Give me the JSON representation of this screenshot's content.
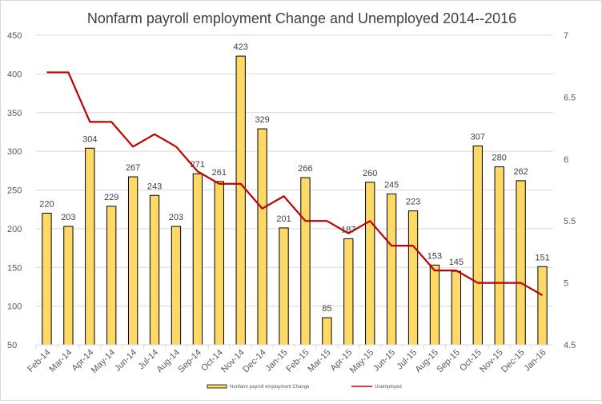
{
  "chart_data": {
    "type": "bar",
    "title": "Nonfarm payroll employment Change and Unemployed 2014--2016",
    "xlabel": "",
    "ylabel": "",
    "y2label": "",
    "categories": [
      "Feb-14",
      "Mar-14",
      "Apr-14",
      "May-14",
      "Jun-14",
      "Jul-14",
      "Aug-14",
      "Sep-14",
      "Oct-14",
      "Nov-14",
      "Dec-14",
      "Jan-15",
      "Feb-15",
      "Mar-15",
      "Apr-15",
      "May-15",
      "Jun-15",
      "Jul-15",
      "Aug-15",
      "Sep-15",
      "Oct-15",
      "Nov-15",
      "Dec-15",
      "Jan-16"
    ],
    "series": [
      {
        "name": "Nonfarm payroll employment Change",
        "type": "bar",
        "axis": "left",
        "color": "#FFD966",
        "edge_color": "#000000",
        "values": [
          220,
          203,
          304,
          229,
          267,
          243,
          203,
          271,
          261,
          423,
          329,
          201,
          266,
          85,
          187,
          260,
          245,
          223,
          153,
          145,
          307,
          280,
          262,
          151
        ],
        "data_labels": [
          "220",
          "203",
          "304",
          "229",
          "267",
          "243",
          "203",
          "271",
          "261",
          "423",
          "329",
          "201",
          "266",
          "85",
          "187",
          "260",
          "245",
          "223",
          "153",
          "145",
          "307",
          "280",
          "262",
          "151"
        ]
      },
      {
        "name": "Unemployed",
        "type": "line",
        "axis": "right",
        "color": "#C00000",
        "values": [
          6.7,
          6.7,
          6.3,
          6.3,
          6.1,
          6.2,
          6.1,
          5.9,
          5.8,
          5.8,
          5.6,
          5.7,
          5.5,
          5.5,
          5.4,
          5.5,
          5.3,
          5.3,
          5.1,
          5.1,
          5.0,
          5.0,
          5.0,
          4.9
        ]
      }
    ],
    "ylim": [
      50,
      450
    ],
    "yticks": [
      "50",
      "100",
      "150",
      "200",
      "250",
      "300",
      "350",
      "400",
      "450"
    ],
    "y2lim": [
      4.5,
      7
    ],
    "y2ticks": [
      "4.5",
      "5",
      "5.5",
      "6",
      "6.5",
      "7"
    ],
    "grid": true,
    "legend_position": "bottom"
  }
}
